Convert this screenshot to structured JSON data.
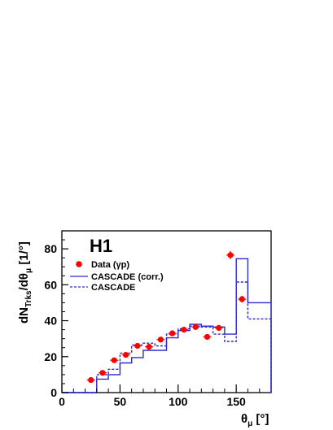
{
  "chart_data": {
    "type": "histogram",
    "experiment_label": "H1",
    "xlabel": {
      "main": "θ",
      "sub": "μ",
      "unit": " [°]"
    },
    "ylabel": {
      "main": "dN",
      "sub": "Trks",
      "mid": "/dθ",
      "sub2": "μ",
      "unit": "  [1/°]"
    },
    "xlim": [
      0,
      180
    ],
    "ylim": [
      0,
      90
    ],
    "xticks": [
      0,
      50,
      100,
      150
    ],
    "yticks": [
      0,
      20,
      40,
      60,
      80
    ],
    "bin_edges": [
      0,
      20,
      30,
      40,
      50,
      60,
      70,
      80,
      90,
      100,
      110,
      120,
      130,
      140,
      150,
      160,
      180
    ],
    "series": [
      {
        "name": "Data (γp)",
        "style": "markers",
        "color": "#ff0000",
        "x": [
          25,
          35,
          45,
          55,
          65,
          75,
          85,
          95,
          105,
          115,
          125,
          135,
          145,
          155
        ],
        "values": [
          7,
          11,
          18,
          21,
          26,
          25.5,
          29.5,
          33,
          35,
          36.5,
          31,
          36,
          76.5,
          52
        ],
        "errors": [
          0.9,
          1.1,
          1.2,
          1.2,
          1.3,
          1.3,
          1.3,
          1.4,
          1.4,
          1.5,
          1.4,
          1.6,
          2.3,
          1.9
        ]
      },
      {
        "name": "CASCADE (corr.)",
        "style": "solid",
        "color": "#2b2bcf",
        "values": [
          0,
          0,
          7.5,
          10,
          16.5,
          19.5,
          23.5,
          23.5,
          30.5,
          34.5,
          38,
          37,
          36.5,
          32.5,
          74.5,
          50,
          0
        ]
      },
      {
        "name": "CASCADE",
        "style": "dashed",
        "color": "#2b2bcf",
        "values": [
          0,
          0,
          10,
          13,
          22,
          26.5,
          27.5,
          26,
          32.5,
          35.5,
          37,
          36.5,
          32.5,
          28.5,
          61.5,
          41,
          0
        ]
      }
    ]
  }
}
